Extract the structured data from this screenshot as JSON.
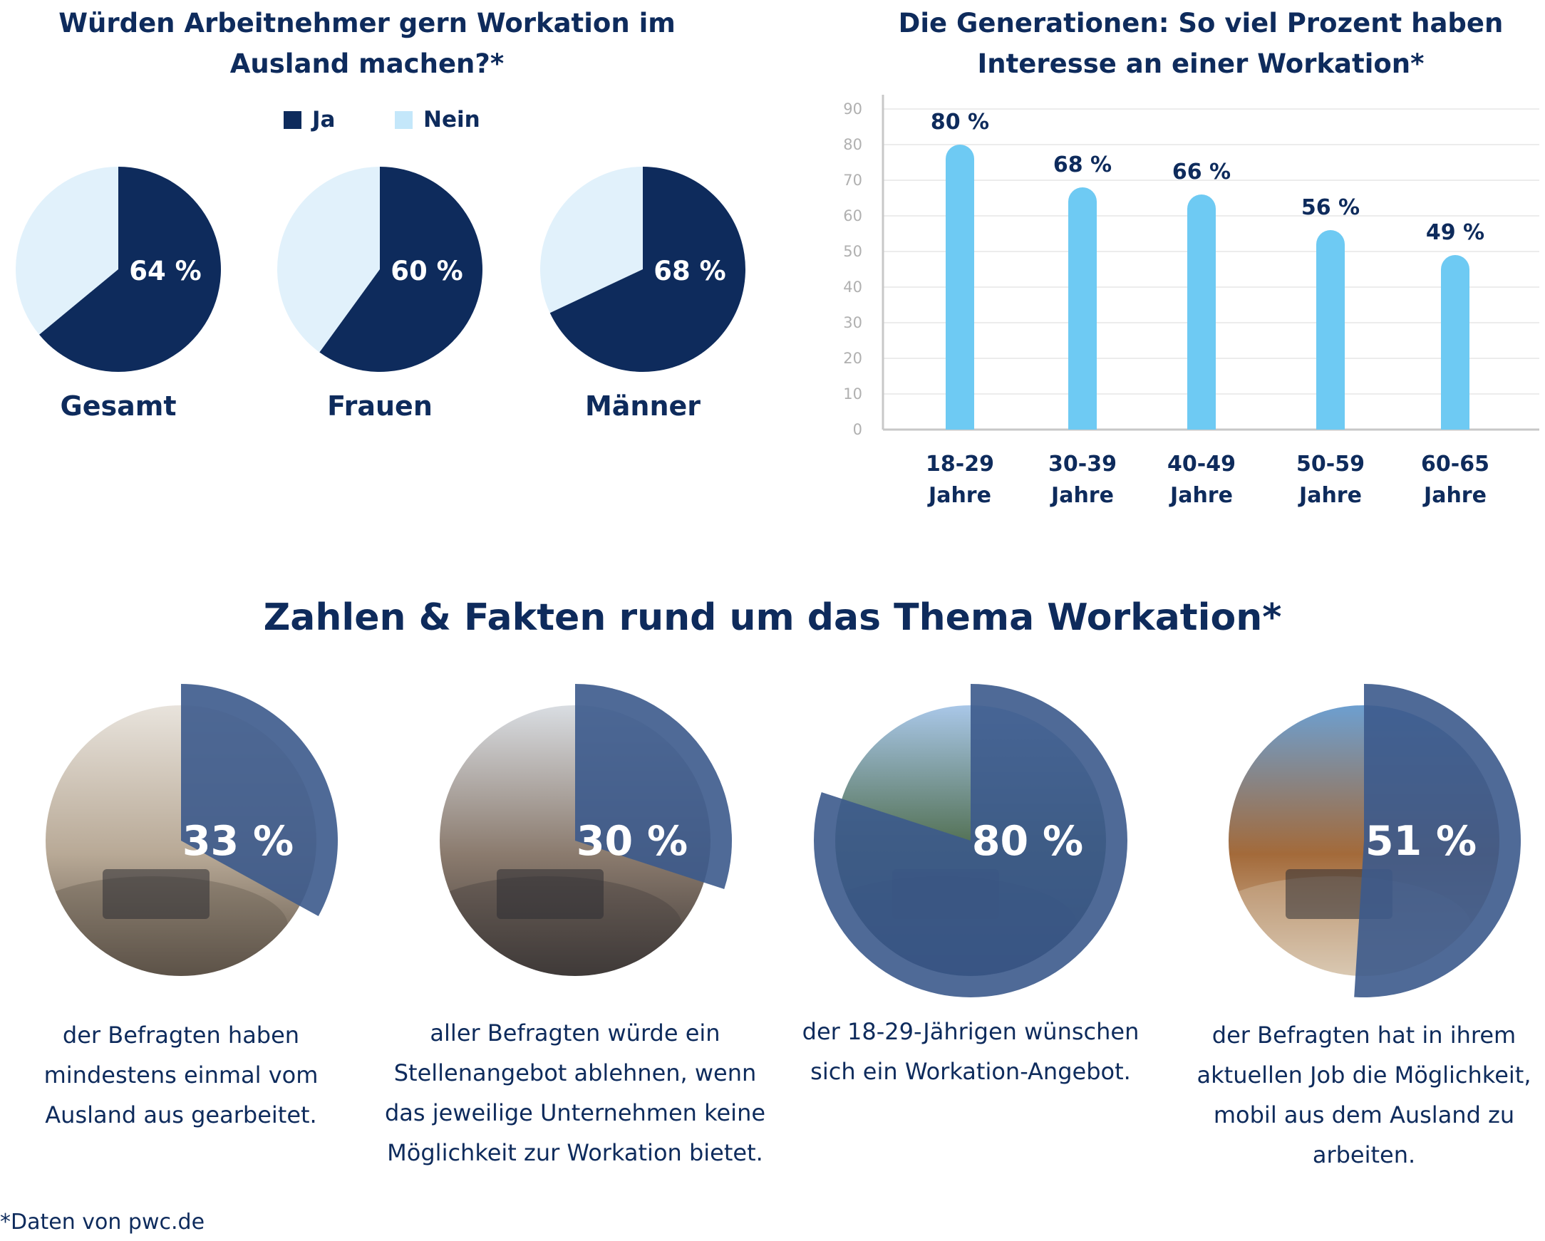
{
  "chart_data": [
    {
      "type": "pie",
      "title": "Würden Arbeitnehmer gern Workation im Ausland machen?*",
      "legend": [
        {
          "name": "Ja",
          "color": "#0e2b5c"
        },
        {
          "name": "Nein",
          "color": "#e1f1fb"
        }
      ],
      "legend_position": "top",
      "pies": [
        {
          "name": "Gesamt",
          "ja": 64,
          "nein": 36,
          "label": "64 %"
        },
        {
          "name": "Frauen",
          "ja": 60,
          "nein": 40,
          "label": "60 %"
        },
        {
          "name": "Männer",
          "ja": 68,
          "nein": 32,
          "label": "68 %"
        }
      ]
    },
    {
      "type": "bar",
      "title": "Die Generationen: So viel Prozent haben Interesse an einer Workation*",
      "categories": [
        [
          "18-29",
          "Jahre"
        ],
        [
          "30-39",
          "Jahre"
        ],
        [
          "40-49",
          "Jahre"
        ],
        [
          "50-59",
          "Jahre"
        ],
        [
          "60-65",
          "Jahre"
        ]
      ],
      "values": [
        80,
        68,
        66,
        56,
        49
      ],
      "value_labels": [
        "80 %",
        "68 %",
        "66 %",
        "56 %",
        "49 %"
      ],
      "ylim": [
        0,
        90
      ],
      "yticks": [
        0,
        10,
        20,
        30,
        40,
        50,
        60,
        70,
        80,
        90
      ],
      "grid": true,
      "bar_color": "#6ecaf3"
    }
  ],
  "facts_title": "Zahlen & Fakten rund um das Thema Workation*",
  "facts": [
    {
      "percent": 33,
      "label": "33 %",
      "text": [
        "der Befragten haben",
        "mindestens einmal vom",
        "Ausland aus gearbeitet."
      ],
      "photo": "desk-laptop-plants"
    },
    {
      "percent": 30,
      "label": "30 %",
      "text": [
        "aller Befragten würde ein",
        "Stellenangebot ablehnen, wenn",
        "das jeweilige Unternehmen keine",
        "Möglichkeit zur Workation bietet."
      ],
      "photo": "woman-with-smartphone"
    },
    {
      "percent": 80,
      "label": "80 %",
      "text": [
        "der 18-29-Jährigen wünschen",
        "sich ein Workation-Angebot."
      ],
      "photo": "man-with-laptop-outdoors"
    },
    {
      "percent": 51,
      "label": "51 %",
      "text": [
        "der Befragten hat in ihrem",
        "aktuellen Job die Möglichkeit,",
        "mobil aus dem Ausland zu",
        "arbeiten."
      ],
      "photo": "balcony-sea-view-laptop"
    }
  ],
  "footnote": "*Daten von pwc.de",
  "colors": {
    "dark": "#0e2b5c",
    "light": "#e1f1fb",
    "bar": "#6ecaf3",
    "overlay": "#3c5a8c"
  }
}
